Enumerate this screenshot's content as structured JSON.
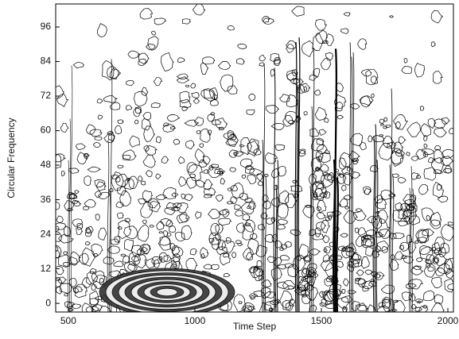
{
  "chart_data": {
    "type": "contour",
    "xlabel": "Time Step",
    "ylabel": "Circular Frequency",
    "xlim": [
      450,
      2022
    ],
    "xticks": [
      500,
      1000,
      1500,
      2000
    ],
    "ylim": [
      -3,
      104
    ],
    "yticks": [
      0,
      12,
      24,
      36,
      48,
      60,
      72,
      84,
      96
    ]
  }
}
